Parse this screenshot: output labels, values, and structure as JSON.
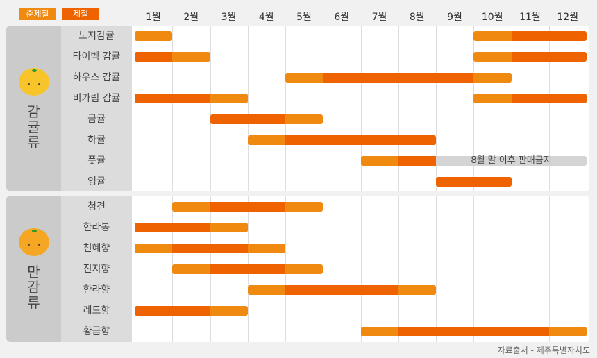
{
  "legend": {
    "semi_season": "준제철",
    "season": "제철"
  },
  "colors": {
    "semi_season": "#f0890f",
    "season": "#ee6200",
    "not_for_sale": "#d4d4d4"
  },
  "chart_data": {
    "type": "gantt",
    "months": [
      "1월",
      "2월",
      "3월",
      "4월",
      "5월",
      "6월",
      "7월",
      "8월",
      "9월",
      "10월",
      "11월",
      "12월"
    ],
    "groups": [
      {
        "name": "감귤류",
        "icon": "mandarin-icon",
        "items": [
          {
            "name": "노지감귤",
            "segments": [
              {
                "from": 1,
                "to": 1,
                "type": "semi_season"
              },
              {
                "from": 10,
                "to": 10,
                "type": "semi_season"
              },
              {
                "from": 11,
                "to": 12,
                "type": "season"
              }
            ]
          },
          {
            "name": "타이벡 감귤",
            "segments": [
              {
                "from": 1,
                "to": 1,
                "type": "season"
              },
              {
                "from": 2,
                "to": 2,
                "type": "semi_season"
              },
              {
                "from": 10,
                "to": 10,
                "type": "semi_season"
              },
              {
                "from": 11,
                "to": 12,
                "type": "season"
              }
            ]
          },
          {
            "name": "하우스 감귤",
            "segments": [
              {
                "from": 5,
                "to": 5,
                "type": "semi_season"
              },
              {
                "from": 6,
                "to": 9,
                "type": "season"
              },
              {
                "from": 10,
                "to": 10,
                "type": "semi_season"
              }
            ]
          },
          {
            "name": "비가림 감귤",
            "segments": [
              {
                "from": 1,
                "to": 2,
                "type": "season"
              },
              {
                "from": 3,
                "to": 3,
                "type": "semi_season"
              },
              {
                "from": 10,
                "to": 10,
                "type": "semi_season"
              },
              {
                "from": 11,
                "to": 12,
                "type": "season"
              }
            ]
          },
          {
            "name": "금귤",
            "segments": [
              {
                "from": 3,
                "to": 4,
                "type": "season"
              },
              {
                "from": 5,
                "to": 5,
                "type": "semi_season"
              }
            ]
          },
          {
            "name": "하귤",
            "segments": [
              {
                "from": 4,
                "to": 4,
                "type": "semi_season"
              },
              {
                "from": 5,
                "to": 8,
                "type": "season"
              }
            ]
          },
          {
            "name": "풋귤",
            "segments": [
              {
                "from": 7,
                "to": 7,
                "type": "semi_season"
              },
              {
                "from": 8,
                "to": 8,
                "type": "season"
              },
              {
                "from": 9,
                "to": 12,
                "type": "not_for_sale",
                "label": "8월 말 이후 판매금지"
              }
            ]
          },
          {
            "name": "영귤",
            "segments": [
              {
                "from": 9,
                "to": 10,
                "type": "season"
              }
            ]
          }
        ]
      },
      {
        "name": "만감류",
        "icon": "tangor-icon",
        "items": [
          {
            "name": "청견",
            "segments": [
              {
                "from": 2,
                "to": 2,
                "type": "semi_season"
              },
              {
                "from": 3,
                "to": 4,
                "type": "season"
              },
              {
                "from": 5,
                "to": 5,
                "type": "semi_season"
              }
            ]
          },
          {
            "name": "한라봉",
            "segments": [
              {
                "from": 1,
                "to": 2,
                "type": "season"
              },
              {
                "from": 3,
                "to": 3,
                "type": "semi_season"
              }
            ]
          },
          {
            "name": "천혜향",
            "segments": [
              {
                "from": 1,
                "to": 1,
                "type": "semi_season"
              },
              {
                "from": 2,
                "to": 3,
                "type": "season"
              },
              {
                "from": 4,
                "to": 4,
                "type": "semi_season"
              }
            ]
          },
          {
            "name": "진지향",
            "segments": [
              {
                "from": 2,
                "to": 2,
                "type": "semi_season"
              },
              {
                "from": 3,
                "to": 4,
                "type": "season"
              },
              {
                "from": 5,
                "to": 5,
                "type": "semi_season"
              }
            ]
          },
          {
            "name": "한라향",
            "segments": [
              {
                "from": 4,
                "to": 4,
                "type": "semi_season"
              },
              {
                "from": 5,
                "to": 7,
                "type": "season"
              },
              {
                "from": 8,
                "to": 8,
                "type": "semi_season"
              }
            ]
          },
          {
            "name": "레드향",
            "segments": [
              {
                "from": 1,
                "to": 2,
                "type": "season"
              },
              {
                "from": 3,
                "to": 3,
                "type": "semi_season"
              }
            ]
          },
          {
            "name": "황금향",
            "segments": [
              {
                "from": 7,
                "to": 7,
                "type": "semi_season"
              },
              {
                "from": 8,
                "to": 11,
                "type": "season"
              },
              {
                "from": 12,
                "to": 12,
                "type": "semi_season"
              }
            ]
          }
        ]
      }
    ]
  },
  "source": "자료출처 - 제주특별자치도"
}
